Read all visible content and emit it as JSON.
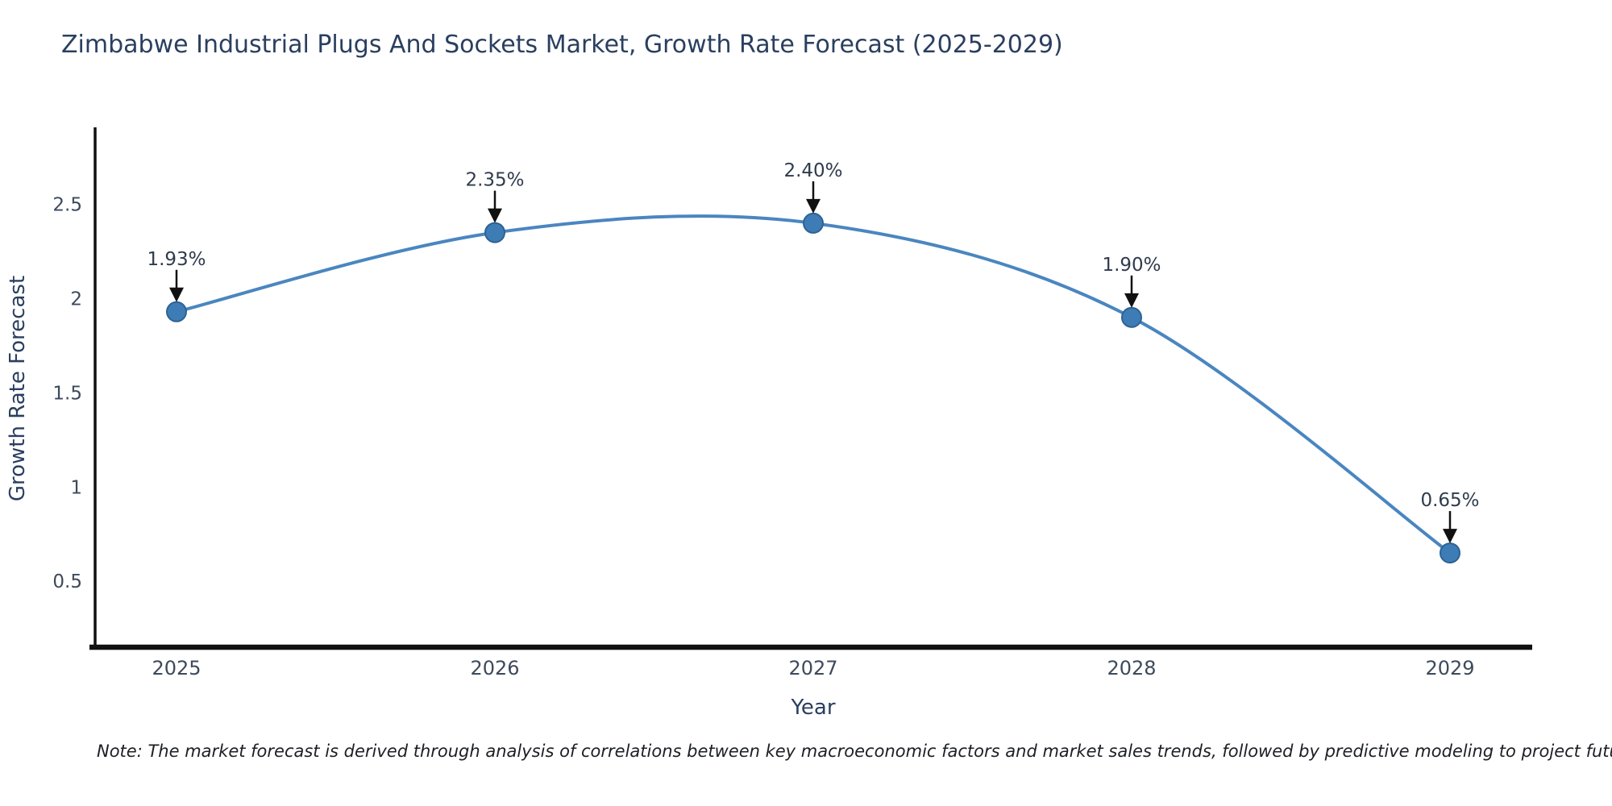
{
  "header": {
    "title": "Zimbabwe Industrial Plugs And Sockets Market, Growth Rate Forecast (2025-2029)"
  },
  "footnote": {
    "text": "Note: The market forecast is derived through analysis of correlations between key macroeconomic factors and market sales trends, followed by predictive modeling to project future sales"
  },
  "chart_data": {
    "type": "line",
    "line_shape": "spline",
    "title": "Zimbabwe Industrial Plugs And Sockets Market, Growth Rate Forecast (2025-2029)",
    "xlabel": "Year",
    "ylabel": "Growth Rate Forecast",
    "categories": [
      "2025",
      "2026",
      "2027",
      "2028",
      "2029"
    ],
    "values": [
      1.93,
      2.35,
      2.4,
      1.9,
      0.65
    ],
    "point_labels": [
      "1.93%",
      "2.35%",
      "2.40%",
      "1.90%",
      "0.65%"
    ],
    "yticks": [
      0.5,
      1,
      1.5,
      2,
      2.5
    ],
    "ytick_labels": [
      "0.5",
      "1",
      "1.5",
      "2",
      "2.5"
    ],
    "ylim": [
      0.15,
      2.9
    ],
    "grid": false,
    "legend": false,
    "annotations_arrow": true,
    "colors": {
      "line": "#4a86c0",
      "marker_fill": "#3e7cb6",
      "marker_edge": "#2e6293",
      "axis": "#111111",
      "arrow": "#111111",
      "title_text": "#2a3f5f",
      "tick_text": "#3d4a5c",
      "annotation_text": "#2f3b4c"
    }
  }
}
